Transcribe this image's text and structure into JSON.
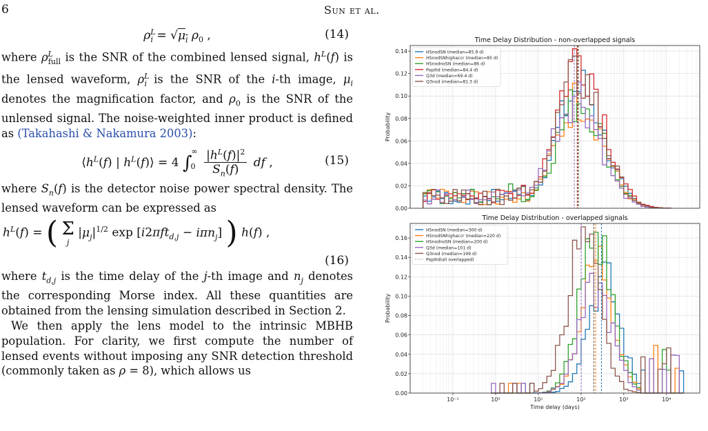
{
  "header": {
    "page_number": "6",
    "running_head": "Sun et al."
  },
  "text": {
    "eq14": {
      "body": "ρ_i^L = √μ_i ρ_0 ,",
      "number": "(14)"
    },
    "p1": "where ρ^L_full is the SNR of the combined lensed signal, h^L(f) is the lensed waveform, ρ^L_i is the SNR of the i-th image, μ_i denotes the magnification factor, and ρ_0 is the SNR of the unlensed signal. The noise-weighted inner product is defined as",
    "p1_cite": "(Takahashi & Nakamura 2003)",
    "p1_end": ":",
    "eq15": {
      "body": "⟨h^L(f) | h^L(f)⟩ = 4 ∫₀^∞ |h^L(f)|² / S_n(f) df ,",
      "number": "(15)"
    },
    "p2": "where S_n(f) is the detector noise power spectral density. The lensed waveform can be expressed as",
    "eq16": {
      "body": "h^L(f) = ( Σ_j |μ_j|^{1/2} exp[i2πf t_{d,j} − iπn_j] ) h(f) ,",
      "number": "(16)"
    },
    "p3": "where t_{d,j} is the time delay of the j-th image and n_j denotes the corresponding Morse index. All these quantities are obtained from the lensing simulation described in Section 2.",
    "p4": "We then apply the lens model to the intrinsic MBHB population. For clarity, we first compute the number of lensed events without imposing any SNR detection threshold (commonly taken as ρ = 8), which allows us"
  },
  "chart_data": [
    {
      "type": "bar",
      "title": "Time Delay Distribution - non-overlapped signals",
      "xlabel": "",
      "ylabel": "Probability",
      "xscale": "log",
      "xlim": [
        0.01,
        60000
      ],
      "ylim": [
        0,
        0.145
      ],
      "yticks": [
        0.0,
        0.02,
        0.04,
        0.06,
        0.08,
        0.1,
        0.12,
        0.14
      ],
      "grid": true,
      "legend_position": "top-left",
      "series": [
        {
          "name": "HSnodSN (median=85.9 d)",
          "color": "#1f77b4",
          "median": 85.9
        },
        {
          "name": "HSnodSNhighaccr (median=85 d)",
          "color": "#ff7f0e",
          "median": 85
        },
        {
          "name": "HSnodnoSN (median=86 d)",
          "color": "#2ca02c",
          "median": 86
        },
        {
          "name": "PopIIId (median=84.4 d)",
          "color": "#d62728",
          "median": 84.4
        },
        {
          "name": "Q3d (median=69.4 d)",
          "color": "#9467bd",
          "median": 69.4
        },
        {
          "name": "Q3nod (median=81.3 d)",
          "color": "#8c564b",
          "median": 81.3
        }
      ]
    },
    {
      "type": "bar",
      "title": "Time Delay Distribution - overlapped signals",
      "xlabel": "Time delay (days)",
      "ylabel": "Probability",
      "xscale": "log",
      "xlim": [
        0.01,
        60000
      ],
      "ylim": [
        0,
        0.175
      ],
      "yticks": [
        0.0,
        0.02,
        0.04,
        0.06,
        0.08,
        0.1,
        0.12,
        0.14,
        0.16
      ],
      "xtick_labels": [
        "10⁻¹",
        "10⁰",
        "10¹",
        "10²",
        "10³",
        "10⁴"
      ],
      "grid": true,
      "legend_position": "top-left",
      "series": [
        {
          "name": "HSnodSN (median=300 d)",
          "color": "#1f77b4",
          "median": 300
        },
        {
          "name": "HSnodSNhighaccr (median=220 d)",
          "color": "#ff7f0e",
          "median": 220
        },
        {
          "name": "HSnodnoSN (median=200 d)",
          "color": "#2ca02c",
          "median": 200
        },
        {
          "name": "Q3d (median=101 d)",
          "color": "#9467bd",
          "median": 101
        },
        {
          "name": "Q3nod (median=199 d)",
          "color": "#8c564b",
          "median": 199
        },
        {
          "name": "PopIIId(all overlapped)",
          "color": "#888888",
          "style": "dotted"
        }
      ]
    }
  ]
}
